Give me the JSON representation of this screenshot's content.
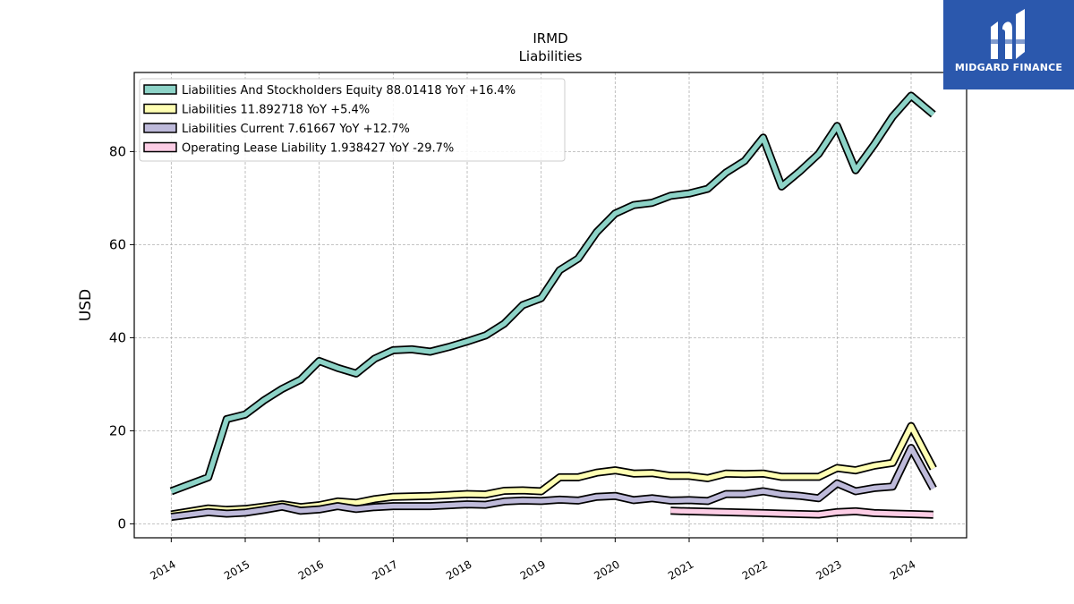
{
  "brand": {
    "name": "MIDGARD FINANCE",
    "icon": "midgard-logo-icon",
    "background": "#2b58ad"
  },
  "chart_data": {
    "type": "line",
    "title": "IRMD",
    "subtitle": "Liabilities",
    "xlabel": "",
    "ylabel": "USD",
    "xlim": [
      2013.5,
      2024.75
    ],
    "ylim": [
      -3,
      97
    ],
    "x_ticks": [
      "2014",
      "2015",
      "2016",
      "2017",
      "2018",
      "2019",
      "2020",
      "2021",
      "2022",
      "2023",
      "2024"
    ],
    "y_ticks": [
      0,
      20,
      40,
      60,
      80
    ],
    "grid": true,
    "legend_position": "top-left",
    "series": [
      {
        "name": "Liabilities And Stockholders Equity",
        "legend": "Liabilities And Stockholders Equity  88.01418 YoY +16.4%",
        "color": "#8dd3c7",
        "x": [
          2014.0,
          2014.5,
          2014.75,
          2015.0,
          2015.25,
          2015.5,
          2015.75,
          2016.0,
          2016.25,
          2016.5,
          2016.75,
          2017.0,
          2017.25,
          2017.5,
          2017.75,
          2018.0,
          2018.25,
          2018.5,
          2018.75,
          2019.0,
          2019.25,
          2019.5,
          2019.75,
          2020.0,
          2020.25,
          2020.5,
          2020.75,
          2021.0,
          2021.25,
          2021.5,
          2021.75,
          2022.0,
          2022.25,
          2022.5,
          2022.75,
          2023.0,
          2023.25,
          2023.5,
          2023.75,
          2024.0,
          2024.3
        ],
        "y": [
          7.0,
          10.0,
          22.5,
          23.5,
          26.5,
          29.0,
          31.0,
          35.0,
          33.5,
          32.3,
          35.5,
          37.3,
          37.5,
          37.0,
          38.0,
          39.2,
          40.5,
          43.0,
          47.0,
          48.5,
          54.5,
          57.0,
          62.7,
          66.7,
          68.5,
          69.0,
          70.5,
          71.0,
          72.0,
          75.5,
          78.0,
          83.0,
          72.5,
          75.8,
          79.5,
          85.5,
          76.0,
          81.5,
          87.5,
          92.0,
          88.0
        ]
      },
      {
        "name": "Liabilities",
        "legend": "Liabilities  11.892718 YoY +5.4%",
        "color": "#ffffb3",
        "x": [
          2014.0,
          2014.5,
          2014.75,
          2015.0,
          2015.25,
          2015.5,
          2015.75,
          2016.0,
          2016.25,
          2016.5,
          2016.75,
          2017.0,
          2017.25,
          2017.5,
          2017.75,
          2018.0,
          2018.25,
          2018.5,
          2018.75,
          2019.0,
          2019.25,
          2019.5,
          2019.75,
          2020.0,
          2020.25,
          2020.5,
          2020.75,
          2021.0,
          2021.25,
          2021.5,
          2021.75,
          2022.0,
          2022.25,
          2022.5,
          2022.75,
          2023.0,
          2023.25,
          2023.5,
          2023.75,
          2024.0,
          2024.3
        ],
        "y": [
          2.0,
          3.3,
          3.0,
          3.2,
          3.7,
          4.2,
          3.6,
          4.0,
          4.8,
          4.5,
          5.3,
          5.8,
          5.9,
          6.0,
          6.2,
          6.4,
          6.3,
          7.1,
          7.2,
          7.0,
          10.0,
          10.0,
          11.0,
          11.5,
          10.8,
          10.9,
          10.3,
          10.3,
          9.8,
          10.8,
          10.7,
          10.8,
          10.1,
          10.1,
          10.1,
          12.0,
          11.5,
          12.5,
          13.1,
          21.0,
          11.9
        ]
      },
      {
        "name": "Liabilities Current",
        "legend": "Liabilities Current  7.61667 YoY +12.7%",
        "color": "#bebada",
        "x": [
          2014.0,
          2014.5,
          2014.75,
          2015.0,
          2015.25,
          2015.5,
          2015.75,
          2016.0,
          2016.25,
          2016.5,
          2016.75,
          2017.0,
          2017.25,
          2017.5,
          2017.75,
          2018.0,
          2018.25,
          2018.5,
          2018.75,
          2019.0,
          2019.25,
          2019.5,
          2019.75,
          2020.0,
          2020.25,
          2020.5,
          2020.75,
          2021.0,
          2021.25,
          2021.5,
          2021.75,
          2022.0,
          2022.25,
          2022.5,
          2022.75,
          2023.0,
          2023.25,
          2023.5,
          2023.75,
          2024.0,
          2024.3
        ],
        "y": [
          1.5,
          2.5,
          2.2,
          2.4,
          3.0,
          3.7,
          2.8,
          3.1,
          3.8,
          3.2,
          3.6,
          3.8,
          3.8,
          3.8,
          4.0,
          4.2,
          4.1,
          4.8,
          5.0,
          4.9,
          5.2,
          5.0,
          5.8,
          6.0,
          5.1,
          5.5,
          5.0,
          5.1,
          4.9,
          6.4,
          6.4,
          7.0,
          6.3,
          6.0,
          5.5,
          8.7,
          7.0,
          7.7,
          8.0,
          16.3,
          7.6
        ]
      },
      {
        "name": "Operating Lease Liability",
        "legend": "Operating Lease Liability  1.938427 YoY -29.7%",
        "color": "#fccde5",
        "x": [
          2020.75,
          2021.0,
          2021.25,
          2021.5,
          2021.75,
          2022.0,
          2022.25,
          2022.5,
          2022.75,
          2023.0,
          2023.25,
          2023.5,
          2023.75,
          2024.0,
          2024.3
        ],
        "y": [
          2.8,
          2.7,
          2.6,
          2.5,
          2.4,
          2.3,
          2.2,
          2.1,
          2.0,
          2.5,
          2.7,
          2.3,
          2.2,
          2.1,
          1.94
        ]
      }
    ]
  }
}
